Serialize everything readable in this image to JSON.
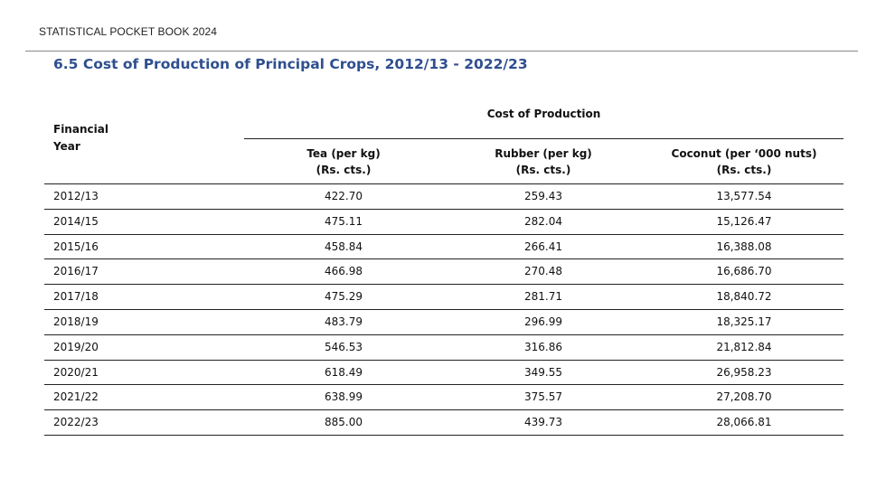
{
  "running_head": "STATISTICAL POCKET BOOK 2024",
  "title": "6.5 Cost of Production of Principal Crops, 2012/13 - 2022/23",
  "table": {
    "group_header": "Cost of Production",
    "year_header": [
      "Financial",
      "Year"
    ],
    "columns": [
      {
        "name": "Tea (per kg)",
        "unit": "(Rs. cts.)"
      },
      {
        "name": "Rubber (per kg)",
        "unit": "(Rs. cts.)"
      },
      {
        "name": "Coconut (per ‘000 nuts)",
        "unit": "(Rs. cts.)"
      }
    ],
    "rows": [
      {
        "year": "2012/13",
        "tea": "422.70",
        "rubber": "259.43",
        "coconut": "13,577.54"
      },
      {
        "year": "2014/15",
        "tea": "475.11",
        "rubber": "282.04",
        "coconut": "15,126.47"
      },
      {
        "year": "2015/16",
        "tea": "458.84",
        "rubber": "266.41",
        "coconut": "16,388.08"
      },
      {
        "year": "2016/17",
        "tea": "466.98",
        "rubber": "270.48",
        "coconut": "16,686.70"
      },
      {
        "year": "2017/18",
        "tea": "475.29",
        "rubber": "281.71",
        "coconut": "18,840.72"
      },
      {
        "year": "2018/19",
        "tea": "483.79",
        "rubber": "296.99",
        "coconut": "18,325.17"
      },
      {
        "year": "2019/20",
        "tea": "546.53",
        "rubber": "316.86",
        "coconut": "21,812.84"
      },
      {
        "year": "2020/21",
        "tea": "618.49",
        "rubber": "349.55",
        "coconut": "26,958.23"
      },
      {
        "year": "2021/22",
        "tea": "638.99",
        "rubber": "375.57",
        "coconut": "27,208.70"
      },
      {
        "year": "2022/23",
        "tea": "885.00",
        "rubber": "439.73",
        "coconut": "28,066.81"
      }
    ]
  }
}
